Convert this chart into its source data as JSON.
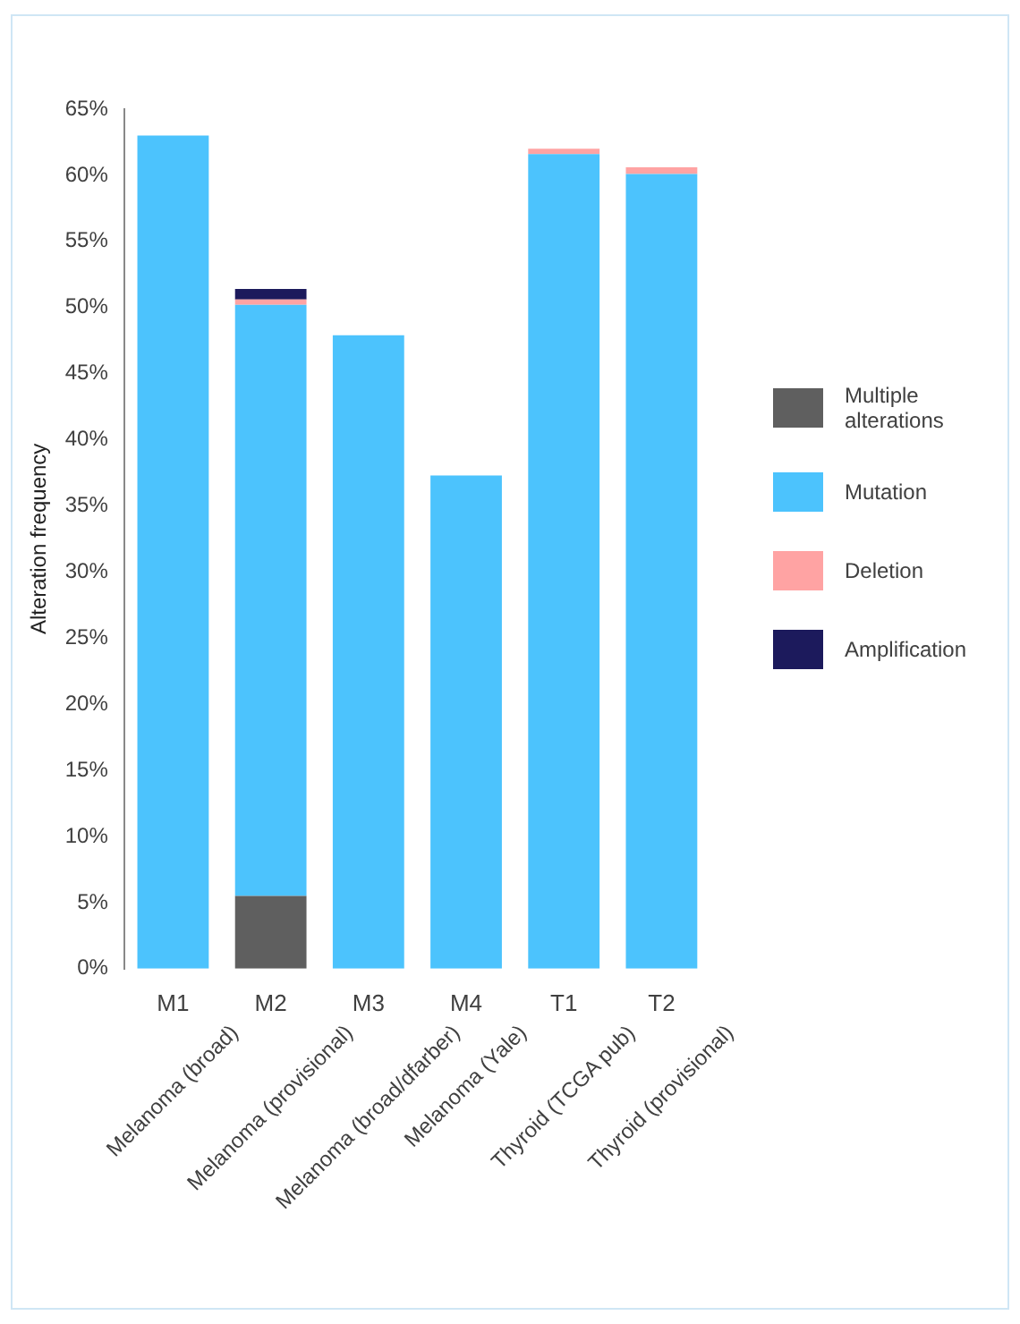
{
  "chart_data": {
    "type": "bar",
    "stacked": true,
    "ylabel": "Alteration frequency",
    "categories": [
      "M1\nMelanoma (broad)",
      "M2\nMelanoma (provisional)",
      "M3\nMelanoma (broad/dfarber)",
      "M4\nMelanoma (Yale)",
      "T1\nThyroid (TCGA pub)",
      "T2\nThyroid (provisional)"
    ],
    "series": [
      {
        "name": "Multiple alterations",
        "color": "#5f5f5f",
        "values": [
          null,
          5.5,
          null,
          null,
          null,
          null
        ]
      },
      {
        "name": "Mutation",
        "color": "#4cc3fd",
        "values": [
          63,
          44.7,
          47.9,
          37.3,
          61.6,
          60.1
        ]
      },
      {
        "name": "Deletion",
        "color": "#ffa3a3",
        "values": [
          null,
          0.4,
          null,
          null,
          0.4,
          0.5
        ]
      },
      {
        "name": "Amplification",
        "color": "#1c1a5c",
        "values": [
          null,
          0.8,
          null,
          null,
          null,
          null
        ]
      }
    ],
    "ylim": [
      0,
      65
    ],
    "yticks": [
      {
        "value": 0,
        "label": "0%"
      },
      {
        "value": 5,
        "label": "5%"
      },
      {
        "value": 10,
        "label": "10%"
      },
      {
        "value": 15,
        "label": "15%"
      },
      {
        "value": 20,
        "label": "20%"
      },
      {
        "value": 25,
        "label": "25%"
      },
      {
        "value": 30,
        "label": "30%"
      },
      {
        "value": 35,
        "label": "35%"
      },
      {
        "value": 40,
        "label": "40%"
      },
      {
        "value": 45,
        "label": "45%"
      },
      {
        "value": 50,
        "label": "50%"
      },
      {
        "value": 55,
        "label": "55%"
      },
      {
        "value": 60,
        "label": "60%"
      },
      {
        "value": 65,
        "label": "65%"
      }
    ],
    "grid": false,
    "legend": "right"
  }
}
